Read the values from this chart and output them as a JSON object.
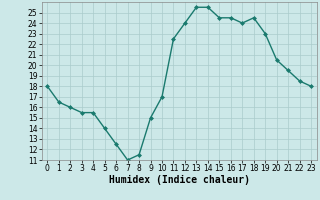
{
  "x": [
    0,
    1,
    2,
    3,
    4,
    5,
    6,
    7,
    8,
    9,
    10,
    11,
    12,
    13,
    14,
    15,
    16,
    17,
    18,
    19,
    20,
    21,
    22,
    23
  ],
  "y": [
    18,
    16.5,
    16,
    15.5,
    15.5,
    14,
    12.5,
    11,
    11.5,
    15,
    17,
    22.5,
    24,
    25.5,
    25.5,
    24.5,
    24.5,
    24,
    24.5,
    23,
    20.5,
    19.5,
    18.5,
    18
  ],
  "line_color": "#1a7a6e",
  "marker": "D",
  "marker_size": 2,
  "line_width": 1.0,
  "bg_color": "#cce8e8",
  "grid_color": "#aacccc",
  "xlabel": "Humidex (Indice chaleur)",
  "xlim": [
    -0.5,
    23.5
  ],
  "ylim": [
    11,
    26
  ],
  "yticks": [
    11,
    12,
    13,
    14,
    15,
    16,
    17,
    18,
    19,
    20,
    21,
    22,
    23,
    24,
    25
  ],
  "xticks": [
    0,
    1,
    2,
    3,
    4,
    5,
    6,
    7,
    8,
    9,
    10,
    11,
    12,
    13,
    14,
    15,
    16,
    17,
    18,
    19,
    20,
    21,
    22,
    23
  ],
  "tick_fontsize": 5.5,
  "xlabel_fontsize": 7
}
